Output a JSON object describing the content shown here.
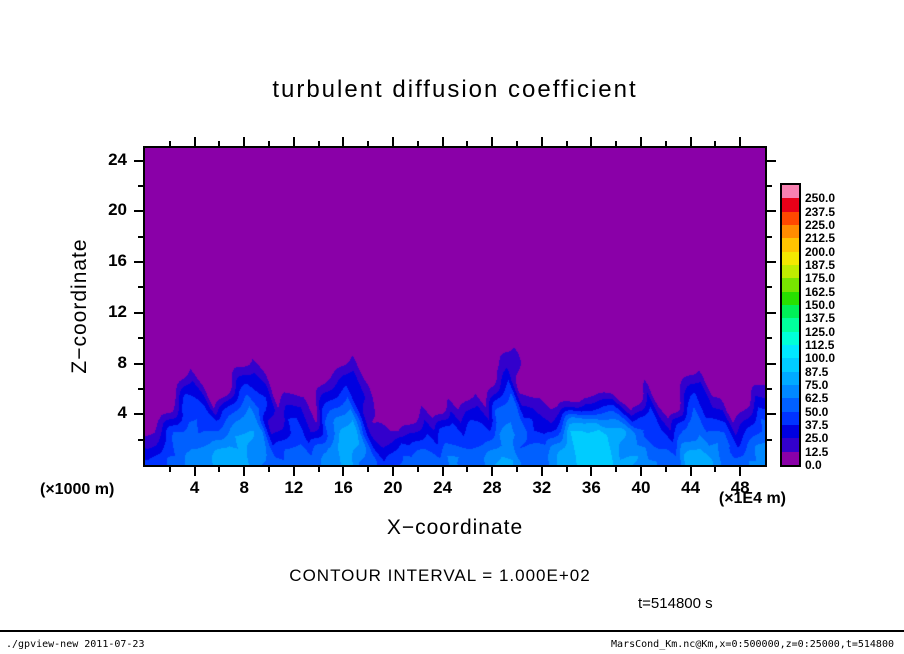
{
  "title": {
    "text": "turbulent diffusion coefficient"
  },
  "axes": {
    "x": {
      "label": "X−coordinate",
      "unit": "(×1E4 m)",
      "ticks": [
        4,
        8,
        12,
        16,
        20,
        24,
        28,
        32,
        36,
        40,
        44,
        48
      ],
      "range": [
        0,
        50
      ]
    },
    "z": {
      "label": "Z−coordinate",
      "unit": "(×1000 m)",
      "ticks": [
        4,
        8,
        12,
        16,
        20,
        24
      ],
      "range": [
        0,
        25
      ]
    }
  },
  "colorbar": {
    "labels": [
      "250.0",
      "237.5",
      "225.0",
      "212.5",
      "200.0",
      "187.5",
      "175.0",
      "162.5",
      "150.0",
      "137.5",
      "125.0",
      "112.5",
      "100.0",
      "87.5",
      "75.0",
      "62.5",
      "50.0",
      "37.5",
      "25.0",
      "12.5",
      "0.0"
    ]
  },
  "annotations": {
    "contour_interval": "CONTOUR INTERVAL = 1.000E+02",
    "time": "t=514800 s"
  },
  "footer": {
    "left": "./gpview-new  2011-07-23",
    "right": "MarsCond_Km.nc@Km,x=0:500000,z=0:25000,t=514800"
  },
  "chart_data": {
    "type": "heatmap",
    "title": "turbulent diffusion coefficient",
    "xlabel": "X−coordinate",
    "x_unit": "×1E4 m",
    "ylabel": "Z−coordinate",
    "y_unit": "×1000 m",
    "x_range": [
      0,
      50
    ],
    "z_range": [
      0,
      25
    ],
    "x_ticks": [
      4,
      8,
      12,
      16,
      20,
      24,
      28,
      32,
      36,
      40,
      44,
      48
    ],
    "z_ticks": [
      4,
      8,
      12,
      16,
      20,
      24
    ],
    "contour_interval": 100.0,
    "time_seconds": 514800,
    "background_value": 0,
    "levels": [
      0,
      12.5,
      25,
      37.5,
      50,
      62.5,
      75,
      87.5,
      100,
      112.5,
      125,
      137.5,
      150,
      162.5,
      175,
      187.5,
      200,
      212.5,
      225,
      237.5,
      250
    ],
    "palette": [
      "#8A00A8",
      "#3300CC",
      "#0000E0",
      "#0033FF",
      "#0060FF",
      "#0088FF",
      "#00AAFF",
      "#00CCFF",
      "#00E8FF",
      "#00FFD8",
      "#00FF9C",
      "#00F058",
      "#28E000",
      "#78E400",
      "#C0EC00",
      "#F4E800",
      "#FFC400",
      "#FF8C00",
      "#FF4800",
      "#E80018",
      "#F880B0"
    ],
    "field": {
      "x_centers": {
        "start": 0.5,
        "step": 1,
        "count": 50
      },
      "z_centers": {
        "start": 0.5,
        "step": 1,
        "count": 10,
        "order": "bottom_to_top"
      },
      "values": [
        [
          37.5,
          50,
          50,
          62.5,
          62.5,
          75,
          87.5,
          75,
          75,
          62.5,
          50,
          50,
          62.5,
          50,
          62.5,
          75,
          87.5,
          62.5,
          50,
          37.5,
          50,
          50,
          62.5,
          50,
          62.5,
          62.5,
          50,
          62.5,
          75,
          75,
          62.5,
          50,
          62.5,
          75,
          87.5,
          100,
          87.5,
          87.5,
          75,
          75,
          62.5,
          62.5,
          50,
          75,
          87.5,
          75,
          62.5,
          50,
          62.5,
          62.5
        ],
        [
          25,
          37.5,
          50,
          62.5,
          62.5,
          62.5,
          75,
          75,
          75,
          62.5,
          37.5,
          50,
          50,
          37.5,
          62.5,
          75,
          87.5,
          62.5,
          37.5,
          25,
          37.5,
          37.5,
          50,
          37.5,
          50,
          50,
          50,
          50,
          62.5,
          75,
          50,
          50,
          50,
          75,
          87.5,
          100,
          100,
          87.5,
          75,
          62.5,
          62.5,
          50,
          37.5,
          62.5,
          75,
          62.5,
          62.5,
          37.5,
          50,
          62.5
        ],
        [
          12.5,
          25,
          50,
          62.5,
          50,
          50,
          62.5,
          75,
          75,
          62.5,
          25,
          37.5,
          50,
          25,
          50,
          62.5,
          87.5,
          50,
          25,
          12.5,
          12.5,
          25,
          37.5,
          25,
          50,
          37.5,
          50,
          37.5,
          62.5,
          75,
          50,
          37.5,
          37.5,
          62.5,
          87.5,
          87.5,
          100,
          87.5,
          75,
          62.5,
          50,
          37.5,
          25,
          50,
          62.5,
          50,
          50,
          25,
          37.5,
          50
        ],
        [
          0,
          12.5,
          37.5,
          50,
          50,
          37.5,
          50,
          62.5,
          75,
          50,
          12.5,
          37.5,
          37.5,
          12.5,
          50,
          62.5,
          75,
          50,
          12.5,
          0,
          0,
          12.5,
          25,
          12.5,
          37.5,
          25,
          37.5,
          25,
          50,
          62.5,
          37.5,
          37.5,
          25,
          37.5,
          62.5,
          75,
          75,
          62.5,
          50,
          37.5,
          50,
          25,
          12.5,
          50,
          62.5,
          37.5,
          37.5,
          12.5,
          25,
          50
        ],
        [
          0,
          0,
          25,
          50,
          37.5,
          12.5,
          37.5,
          50,
          62.5,
          50,
          12.5,
          25,
          25,
          0,
          37.5,
          50,
          62.5,
          37.5,
          0,
          0,
          0,
          0,
          12.5,
          0,
          25,
          12.5,
          25,
          12.5,
          50,
          62.5,
          25,
          25,
          12.5,
          12.5,
          25,
          37.5,
          37.5,
          37.5,
          25,
          12.5,
          37.5,
          12.5,
          0,
          37.5,
          50,
          25,
          25,
          0,
          12.5,
          37.5
        ],
        [
          0,
          0,
          12.5,
          37.5,
          25,
          0,
          12.5,
          37.5,
          50,
          37.5,
          0,
          12.5,
          12.5,
          0,
          25,
          37.5,
          50,
          25,
          0,
          0,
          0,
          0,
          12.5,
          0,
          12.5,
          0,
          12.5,
          0,
          37.5,
          50,
          12.5,
          12.5,
          0,
          0,
          0,
          12.5,
          12.5,
          12.5,
          0,
          0,
          25,
          0,
          0,
          25,
          37.5,
          12.5,
          12.5,
          0,
          0,
          25
        ],
        [
          0,
          0,
          0,
          25,
          12.5,
          0,
          0,
          25,
          37.5,
          25,
          0,
          0,
          0,
          0,
          12.5,
          25,
          37.5,
          12.5,
          0,
          0,
          0,
          0,
          0,
          0,
          0,
          0,
          0,
          0,
          25,
          37.5,
          0,
          0,
          0,
          0,
          0,
          0,
          0,
          0,
          0,
          0,
          12.5,
          0,
          0,
          12.5,
          25,
          0,
          0,
          0,
          0,
          12.5
        ],
        [
          0,
          0,
          0,
          12.5,
          0,
          0,
          0,
          12.5,
          25,
          12.5,
          0,
          0,
          0,
          0,
          0,
          12.5,
          25,
          0,
          0,
          0,
          0,
          0,
          0,
          0,
          0,
          0,
          0,
          0,
          12.5,
          25,
          0,
          0,
          0,
          0,
          0,
          0,
          0,
          0,
          0,
          0,
          0,
          0,
          0,
          0,
          12.5,
          0,
          0,
          0,
          0,
          0
        ],
        [
          0,
          0,
          0,
          0,
          0,
          0,
          0,
          0,
          12.5,
          0,
          0,
          0,
          0,
          0,
          0,
          0,
          12.5,
          0,
          0,
          0,
          0,
          0,
          0,
          0,
          0,
          0,
          0,
          0,
          0,
          25,
          0,
          0,
          0,
          0,
          0,
          0,
          0,
          0,
          0,
          0,
          0,
          0,
          0,
          0,
          0,
          0,
          0,
          0,
          0,
          0
        ],
        [
          0,
          0,
          0,
          0,
          0,
          0,
          0,
          0,
          0,
          0,
          0,
          0,
          0,
          0,
          0,
          0,
          0,
          0,
          0,
          0,
          0,
          0,
          0,
          0,
          0,
          0,
          0,
          0,
          0,
          12.5,
          0,
          0,
          0,
          0,
          0,
          0,
          0,
          0,
          0,
          0,
          0,
          0,
          0,
          0,
          0,
          0,
          0,
          0,
          0,
          0
        ]
      ]
    }
  }
}
